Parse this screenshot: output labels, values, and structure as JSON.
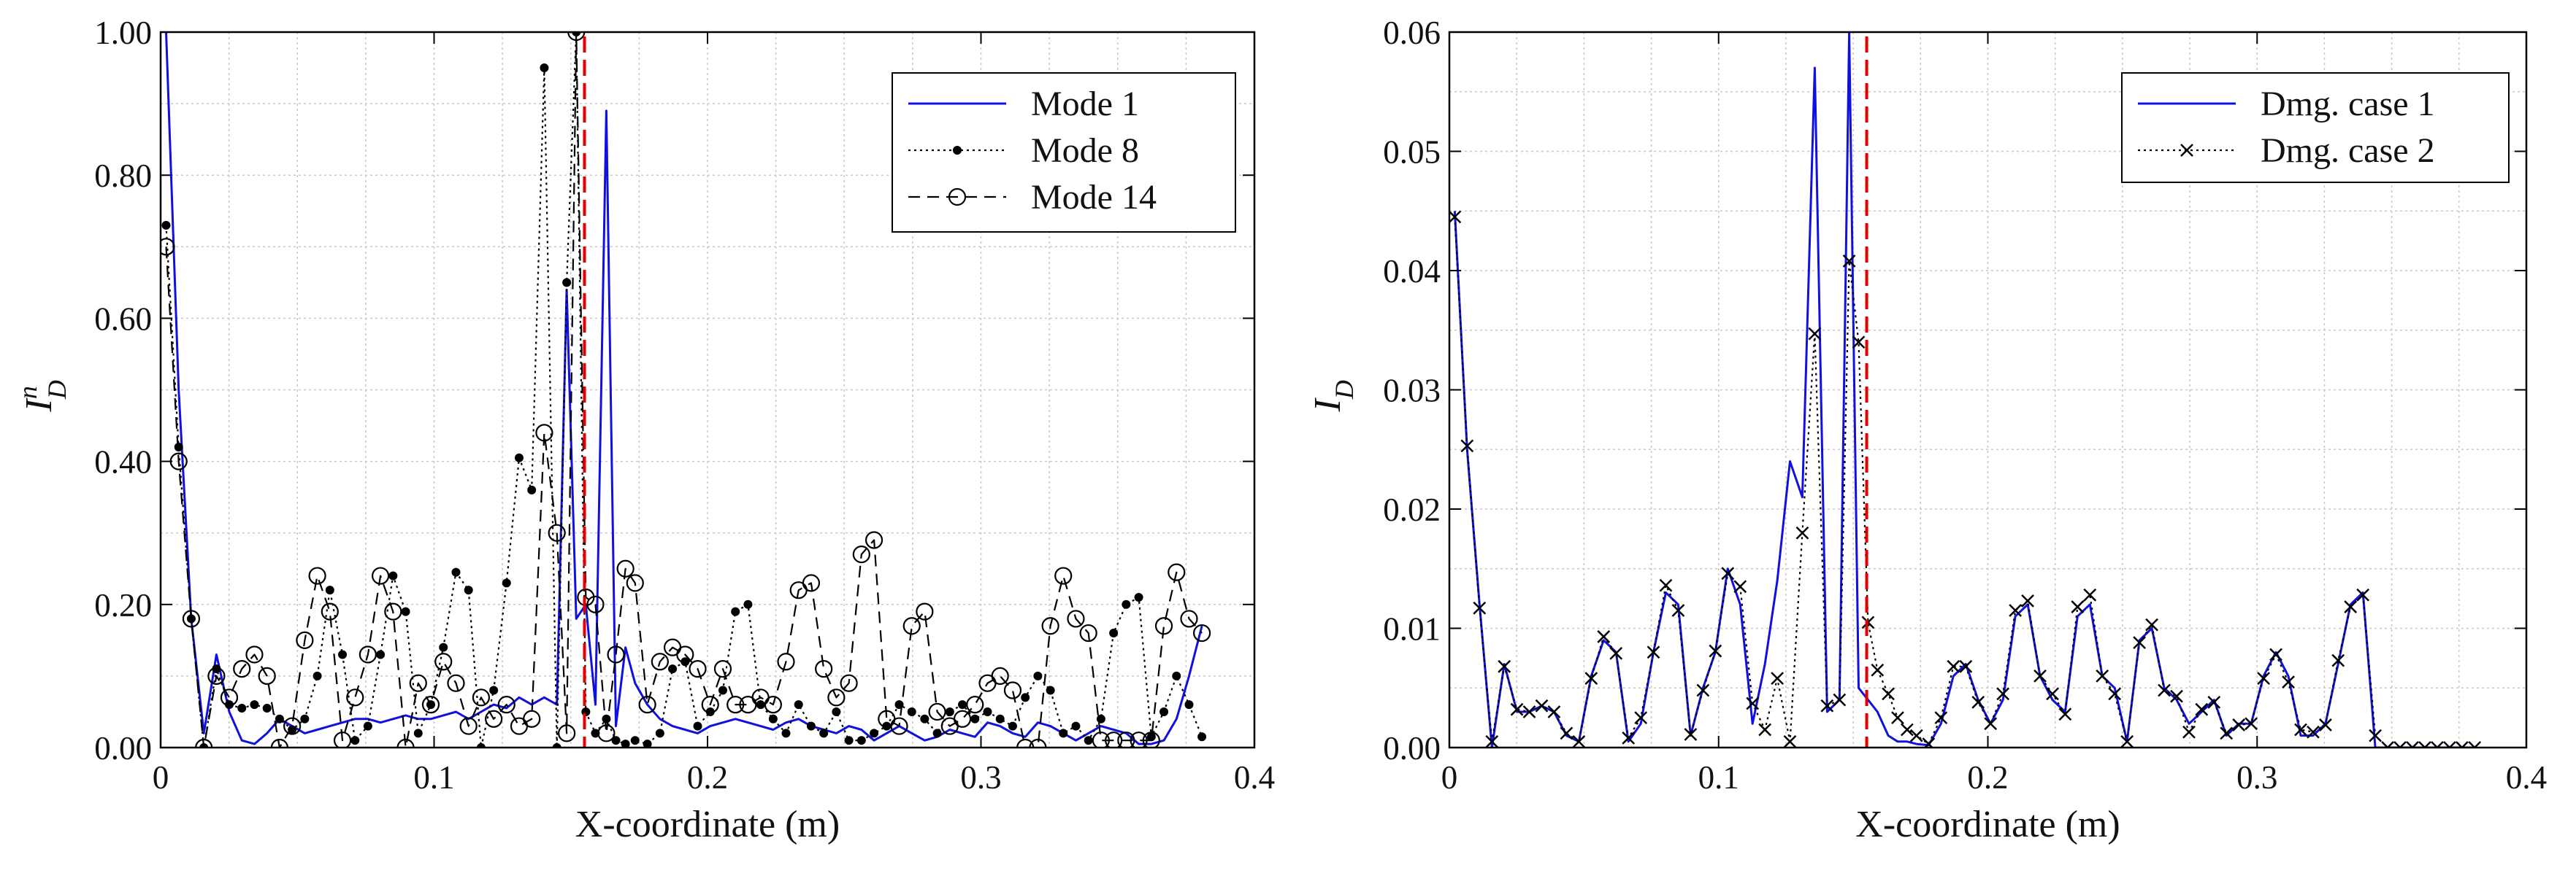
{
  "chart_data": [
    {
      "type": "line",
      "xlabel": "X-coordinate (m)",
      "ylabel_main": "I",
      "ylabel_sup": "n",
      "ylabel_sub": "D",
      "xlim": [
        0,
        0.4
      ],
      "ylim": [
        0,
        1.0
      ],
      "xticks": [
        0,
        0.1,
        0.2,
        0.3,
        0.4
      ],
      "xtick_labels": [
        "0",
        "0.1",
        "0.2",
        "0.3",
        "0.4"
      ],
      "yticks": [
        0,
        0.2,
        0.4,
        0.6,
        0.8,
        1.0
      ],
      "ytick_labels": [
        "0.00",
        "0.20",
        "0.40",
        "0.60",
        "0.80",
        "1.00"
      ],
      "grid": true,
      "legend_position": "top-right",
      "damage_location_x": 0.155,
      "damage_line_color": "#e00000",
      "series": [
        {
          "name": "Mode 1",
          "style": "solid",
          "color": "#1010e0",
          "marker": "none",
          "x": [
            0.002,
            0.0066,
            0.0112,
            0.0158,
            0.0204,
            0.0251,
            0.0297,
            0.0343,
            0.0389,
            0.0435,
            0.0481,
            0.0527,
            0.0573,
            0.0619,
            0.0665,
            0.0711,
            0.0758,
            0.0804,
            0.085,
            0.0896,
            0.0942,
            0.0988,
            0.1034,
            0.108,
            0.1126,
            0.1172,
            0.1218,
            0.1265,
            0.1311,
            0.1357,
            0.1403,
            0.1449,
            0.1485,
            0.152,
            0.1555,
            0.159,
            0.163,
            0.1665,
            0.17,
            0.1735,
            0.178,
            0.1826,
            0.1872,
            0.1918,
            0.1964,
            0.201,
            0.2056,
            0.2102,
            0.2148,
            0.2194,
            0.224,
            0.2287,
            0.2333,
            0.2379,
            0.2425,
            0.2471,
            0.2517,
            0.2563,
            0.2609,
            0.2655,
            0.2701,
            0.2747,
            0.2794,
            0.284,
            0.2886,
            0.2932,
            0.2978,
            0.3024,
            0.307,
            0.3116,
            0.3162,
            0.3208,
            0.3254,
            0.3301,
            0.3347,
            0.3393,
            0.3439,
            0.3485,
            0.3531,
            0.3577,
            0.3623,
            0.3669,
            0.3715,
            0.3761,
            0.3808
          ],
          "y": [
            1.0,
            0.5,
            0.18,
            0.02,
            0.13,
            0.05,
            0.01,
            0.005,
            0.02,
            0.04,
            0.03,
            0.02,
            0.025,
            0.03,
            0.035,
            0.04,
            0.04,
            0.035,
            0.04,
            0.045,
            0.04,
            0.04,
            0.045,
            0.05,
            0.04,
            0.05,
            0.06,
            0.055,
            0.07,
            0.06,
            0.07,
            0.06,
            0.64,
            0.18,
            0.2,
            0.06,
            0.89,
            0.03,
            0.14,
            0.09,
            0.06,
            0.04,
            0.03,
            0.025,
            0.02,
            0.03,
            0.035,
            0.04,
            0.035,
            0.03,
            0.025,
            0.035,
            0.04,
            0.03,
            0.025,
            0.02,
            0.03,
            0.025,
            0.01,
            0.02,
            0.03,
            0.02,
            0.01,
            0.015,
            0.025,
            0.02,
            0.015,
            0.035,
            0.03,
            0.02,
            0.015,
            0.035,
            0.03,
            0.02,
            0.01,
            0.02,
            0.03,
            0.025,
            0.02,
            0.005,
            0.005,
            0.01,
            0.04,
            0.1,
            0.17
          ]
        },
        {
          "name": "Mode 8",
          "style": "dotted",
          "color": "#000000",
          "marker": "filled-circle",
          "x": [
            0.002,
            0.0066,
            0.0112,
            0.0158,
            0.0204,
            0.0251,
            0.0297,
            0.0343,
            0.0389,
            0.0435,
            0.0481,
            0.0527,
            0.0573,
            0.0619,
            0.0665,
            0.0711,
            0.0758,
            0.0804,
            0.085,
            0.0896,
            0.0942,
            0.0988,
            0.1034,
            0.108,
            0.1126,
            0.1172,
            0.1218,
            0.1265,
            0.1311,
            0.1357,
            0.1403,
            0.1449,
            0.1485,
            0.152,
            0.1555,
            0.159,
            0.163,
            0.1665,
            0.17,
            0.1735,
            0.178,
            0.1826,
            0.1872,
            0.1918,
            0.1964,
            0.201,
            0.2056,
            0.2102,
            0.2148,
            0.2194,
            0.224,
            0.2287,
            0.2333,
            0.2379,
            0.2425,
            0.2471,
            0.2517,
            0.2563,
            0.2609,
            0.2655,
            0.2701,
            0.2747,
            0.2794,
            0.284,
            0.2886,
            0.2932,
            0.2978,
            0.3024,
            0.307,
            0.3116,
            0.3162,
            0.3208,
            0.3254,
            0.3301,
            0.3347,
            0.3393,
            0.3439,
            0.3485,
            0.3531,
            0.3577,
            0.3623,
            0.3669,
            0.3715,
            0.3761,
            0.3808
          ],
          "y": [
            0.73,
            0.42,
            0.18,
            0.0,
            0.11,
            0.06,
            0.055,
            0.06,
            0.055,
            0.04,
            0.025,
            0.04,
            0.1,
            0.22,
            0.13,
            0.01,
            0.03,
            0.13,
            0.24,
            0.19,
            0.02,
            0.06,
            0.14,
            0.245,
            0.22,
            0.0,
            0.08,
            0.23,
            0.405,
            0.36,
            0.95,
            0.0,
            0.65,
            1.0,
            0.05,
            0.02,
            0.04,
            0.01,
            0.005,
            0.01,
            0.005,
            0.02,
            0.11,
            0.12,
            0.03,
            0.05,
            0.08,
            0.19,
            0.2,
            0.06,
            0.04,
            0.02,
            0.06,
            0.03,
            0.02,
            0.05,
            0.01,
            0.01,
            0.02,
            0.03,
            0.06,
            0.05,
            0.04,
            0.02,
            0.05,
            0.06,
            0.04,
            0.05,
            0.04,
            0.03,
            0.07,
            0.1,
            0.08,
            0.02,
            0.03,
            0.01,
            0.04,
            0.16,
            0.2,
            0.21,
            0.015,
            0.05,
            0.1,
            0.06,
            0.015
          ]
        },
        {
          "name": "Mode 14",
          "style": "dashed",
          "color": "#000000",
          "marker": "open-circle",
          "x": [
            0.002,
            0.0066,
            0.0112,
            0.0158,
            0.0204,
            0.0251,
            0.0297,
            0.0343,
            0.0389,
            0.0435,
            0.0481,
            0.0527,
            0.0573,
            0.0619,
            0.0665,
            0.0711,
            0.0758,
            0.0804,
            0.085,
            0.0896,
            0.0942,
            0.0988,
            0.1034,
            0.108,
            0.1126,
            0.1172,
            0.1218,
            0.1265,
            0.1311,
            0.1357,
            0.1403,
            0.1449,
            0.1485,
            0.152,
            0.1555,
            0.159,
            0.163,
            0.1665,
            0.17,
            0.1735,
            0.178,
            0.1826,
            0.1872,
            0.1918,
            0.1964,
            0.201,
            0.2056,
            0.2102,
            0.2148,
            0.2194,
            0.224,
            0.2287,
            0.2333,
            0.2379,
            0.2425,
            0.2471,
            0.2517,
            0.2563,
            0.2609,
            0.2655,
            0.2701,
            0.2747,
            0.2794,
            0.284,
            0.2886,
            0.2932,
            0.2978,
            0.3024,
            0.307,
            0.3116,
            0.3162,
            0.3208,
            0.3254,
            0.3301,
            0.3347,
            0.3393,
            0.3439,
            0.3485,
            0.3531,
            0.3577,
            0.3623,
            0.3669,
            0.3715,
            0.3761,
            0.3808
          ],
          "y": [
            0.7,
            0.4,
            0.18,
            0.0,
            0.1,
            0.07,
            0.11,
            0.13,
            0.1,
            0.0,
            0.03,
            0.15,
            0.24,
            0.19,
            0.01,
            0.07,
            0.13,
            0.24,
            0.19,
            0.0,
            0.09,
            0.06,
            0.12,
            0.09,
            0.03,
            0.07,
            0.04,
            0.06,
            0.03,
            0.04,
            0.44,
            0.3,
            0.02,
            1.0,
            0.21,
            0.2,
            0.02,
            0.13,
            0.25,
            0.23,
            0.06,
            0.12,
            0.14,
            0.13,
            0.11,
            0.06,
            0.11,
            0.06,
            0.06,
            0.07,
            0.06,
            0.12,
            0.22,
            0.23,
            0.11,
            0.07,
            0.09,
            0.27,
            0.29,
            0.04,
            0.03,
            0.17,
            0.19,
            0.05,
            0.03,
            0.04,
            0.06,
            0.09,
            0.1,
            0.08,
            0.0,
            0.0,
            0.17,
            0.24,
            0.18,
            0.16,
            0.01,
            0.01,
            0.01,
            0.01,
            0.01,
            0.17,
            0.245,
            0.18,
            0.16
          ]
        }
      ]
    },
    {
      "type": "line",
      "xlabel": "X-coordinate (m)",
      "ylabel_main": "I",
      "ylabel_sub": "D",
      "xlim": [
        0,
        0.4
      ],
      "ylim": [
        0,
        0.06
      ],
      "xticks": [
        0,
        0.1,
        0.2,
        0.3,
        0.4
      ],
      "xtick_labels": [
        "0",
        "0.1",
        "0.2",
        "0.3",
        "0.4"
      ],
      "yticks": [
        0,
        0.01,
        0.02,
        0.03,
        0.04,
        0.05,
        0.06
      ],
      "ytick_labels": [
        "0.00",
        "0.01",
        "0.02",
        "0.03",
        "0.04",
        "0.05",
        "0.06"
      ],
      "grid": true,
      "legend_position": "top-right",
      "damage_location_x": 0.155,
      "damage_line_color": "#e00000",
      "series": [
        {
          "name": "Dmg. case 1",
          "style": "solid",
          "color": "#1010e0",
          "marker": "none",
          "x": [
            0.002,
            0.0066,
            0.0112,
            0.0158,
            0.0204,
            0.0251,
            0.0297,
            0.0343,
            0.0389,
            0.0435,
            0.0481,
            0.0527,
            0.0573,
            0.0619,
            0.0665,
            0.0711,
            0.0758,
            0.0804,
            0.085,
            0.0896,
            0.0942,
            0.0988,
            0.1034,
            0.108,
            0.1126,
            0.1172,
            0.1218,
            0.1265,
            0.1311,
            0.1357,
            0.1403,
            0.1449,
            0.1485,
            0.152,
            0.1555,
            0.159,
            0.163,
            0.1665,
            0.17,
            0.1735,
            0.178,
            0.1826,
            0.1872,
            0.1918,
            0.1964,
            0.201,
            0.2056,
            0.2102,
            0.2148,
            0.2194,
            0.224,
            0.2287,
            0.2333,
            0.2379,
            0.2425,
            0.2471,
            0.2517,
            0.2563,
            0.2609,
            0.2655,
            0.2701,
            0.2747,
            0.2794,
            0.284,
            0.2886,
            0.2932,
            0.2978,
            0.3024,
            0.307,
            0.3116,
            0.3162,
            0.3208,
            0.3254,
            0.3301,
            0.3347,
            0.3393,
            0.3439,
            0.3485,
            0.3531,
            0.3577,
            0.3623,
            0.3669,
            0.3715,
            0.3761,
            0.3808
          ],
          "y": [
            0.045,
            0.025,
            0.012,
            0.0,
            0.007,
            0.003,
            0.003,
            0.0035,
            0.003,
            0.001,
            0.0005,
            0.006,
            0.009,
            0.008,
            0.0005,
            0.002,
            0.008,
            0.013,
            0.012,
            0.001,
            0.005,
            0.008,
            0.015,
            0.012,
            0.002,
            0.007,
            0.014,
            0.024,
            0.021,
            0.057,
            0.003,
            0.004,
            0.06,
            0.005,
            0.004,
            0.003,
            0.001,
            0.0005,
            0.0005,
            0.0003,
            0.0002,
            0.002,
            0.006,
            0.007,
            0.004,
            0.002,
            0.004,
            0.011,
            0.012,
            0.006,
            0.004,
            0.003,
            0.011,
            0.012,
            0.006,
            0.005,
            0.0005,
            0.009,
            0.01,
            0.005,
            0.004,
            0.002,
            0.003,
            0.004,
            0.001,
            0.002,
            0.002,
            0.006,
            0.008,
            0.006,
            0.001,
            0.001,
            0.002,
            0.007,
            0.012,
            0.013,
            0.0,
            0.0,
            0.0,
            0.0,
            0.0,
            0.0,
            0.0,
            0.0,
            0.0
          ]
        },
        {
          "name": "Dmg. case 2",
          "style": "dotted",
          "color": "#000000",
          "marker": "x",
          "x": [
            0.002,
            0.0066,
            0.0112,
            0.0158,
            0.0204,
            0.0251,
            0.0297,
            0.0343,
            0.0389,
            0.0435,
            0.0481,
            0.0527,
            0.0573,
            0.0619,
            0.0665,
            0.0711,
            0.0758,
            0.0804,
            0.085,
            0.0896,
            0.0942,
            0.0988,
            0.1034,
            0.108,
            0.1126,
            0.1172,
            0.1218,
            0.1265,
            0.1311,
            0.1357,
            0.1403,
            0.1449,
            0.1485,
            0.152,
            0.1555,
            0.159,
            0.163,
            0.1665,
            0.17,
            0.1735,
            0.178,
            0.1826,
            0.1872,
            0.1918,
            0.1964,
            0.201,
            0.2056,
            0.2102,
            0.2148,
            0.2194,
            0.224,
            0.2287,
            0.2333,
            0.2379,
            0.2425,
            0.2471,
            0.2517,
            0.2563,
            0.2609,
            0.2655,
            0.2701,
            0.2747,
            0.2794,
            0.284,
            0.2886,
            0.2932,
            0.2978,
            0.3024,
            0.307,
            0.3116,
            0.3162,
            0.3208,
            0.3254,
            0.3301,
            0.3347,
            0.3393,
            0.3439,
            0.3485,
            0.3531,
            0.3577,
            0.3623,
            0.3669,
            0.3715,
            0.3761,
            0.3808
          ],
          "y": [
            0.0445,
            0.0253,
            0.0117,
            0.0005,
            0.0068,
            0.0032,
            0.003,
            0.0035,
            0.003,
            0.0012,
            0.0005,
            0.0058,
            0.0093,
            0.0079,
            0.0008,
            0.0025,
            0.008,
            0.0136,
            0.0115,
            0.0011,
            0.0048,
            0.0081,
            0.0146,
            0.0135,
            0.0037,
            0.0015,
            0.0058,
            0.0005,
            0.018,
            0.0347,
            0.0035,
            0.004,
            0.0408,
            0.034,
            0.0105,
            0.0065,
            0.0045,
            0.0025,
            0.0015,
            0.001,
            0.0003,
            0.0025,
            0.0068,
            0.0068,
            0.0038,
            0.002,
            0.0045,
            0.0115,
            0.0123,
            0.006,
            0.0045,
            0.0028,
            0.0118,
            0.0128,
            0.006,
            0.0045,
            0.0005,
            0.0088,
            0.0103,
            0.0048,
            0.0043,
            0.0013,
            0.0032,
            0.0038,
            0.0012,
            0.0019,
            0.002,
            0.0058,
            0.0078,
            0.0055,
            0.0015,
            0.0013,
            0.0019,
            0.0073,
            0.0118,
            0.0128,
            0.001,
            0.0,
            0.0,
            0.0,
            0.0,
            0.0,
            0.0,
            0.0,
            0.0
          ]
        }
      ]
    }
  ]
}
